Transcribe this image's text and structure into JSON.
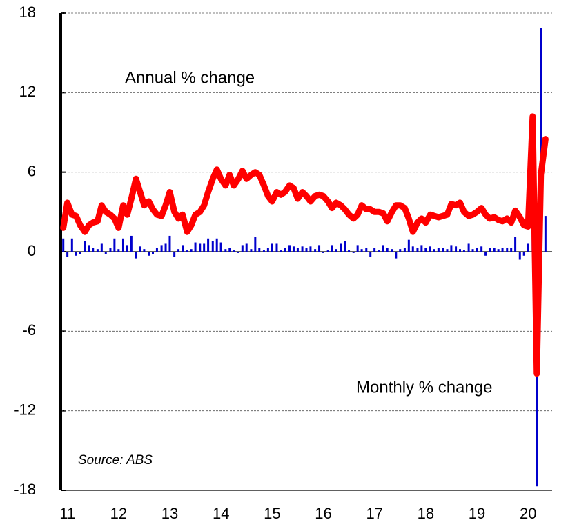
{
  "chart_data": {
    "type": "bar_line",
    "annotations": [
      {
        "text": "Annual % change",
        "color": "#ff0000"
      },
      {
        "text": "Monthly % change",
        "color": "#0000cc"
      }
    ],
    "source": "Source: ABS",
    "x": [
      2011,
      2011.08,
      2011.17,
      2011.25,
      2011.33,
      2011.42,
      2011.5,
      2011.58,
      2011.67,
      2011.75,
      2011.83,
      2011.92,
      2012,
      2012.08,
      2012.17,
      2012.25,
      2012.33,
      2012.42,
      2012.5,
      2012.58,
      2012.67,
      2012.75,
      2012.83,
      2012.92,
      2013,
      2013.08,
      2013.17,
      2013.25,
      2013.33,
      2013.42,
      2013.5,
      2013.58,
      2013.67,
      2013.75,
      2013.83,
      2013.92,
      2014,
      2014.08,
      2014.17,
      2014.25,
      2014.33,
      2014.42,
      2014.5,
      2014.58,
      2014.67,
      2014.75,
      2014.83,
      2014.92,
      2015,
      2015.08,
      2015.17,
      2015.25,
      2015.33,
      2015.42,
      2015.5,
      2015.58,
      2015.67,
      2015.75,
      2015.83,
      2015.92,
      2016,
      2016.08,
      2016.17,
      2016.25,
      2016.33,
      2016.42,
      2016.5,
      2016.58,
      2016.67,
      2016.75,
      2016.83,
      2016.92,
      2017,
      2017.08,
      2017.17,
      2017.25,
      2017.33,
      2017.42,
      2017.5,
      2017.58,
      2017.67,
      2017.75,
      2017.83,
      2017.92,
      2018,
      2018.08,
      2018.17,
      2018.25,
      2018.33,
      2018.42,
      2018.5,
      2018.58,
      2018.67,
      2018.75,
      2018.83,
      2018.92,
      2019,
      2019.08,
      2019.17,
      2019.25,
      2019.33,
      2019.42,
      2019.5,
      2019.58,
      2019.67,
      2019.75,
      2019.83,
      2019.92,
      2020,
      2020.08,
      2020.17,
      2020.25,
      2020.33,
      2020.42
    ],
    "series": [
      {
        "name": "Monthly % change",
        "kind": "bar",
        "color": "#0000cc",
        "values": [
          1.0,
          -0.4,
          1.0,
          -0.3,
          -0.2,
          0.8,
          0.5,
          0.3,
          0.2,
          0.6,
          -0.2,
          0.3,
          1.0,
          0.2,
          1.0,
          0.5,
          1.2,
          -0.5,
          0.4,
          0.2,
          -0.3,
          -0.2,
          0.3,
          0.5,
          0.6,
          1.2,
          -0.4,
          0.2,
          0.5,
          0.1,
          0.2,
          0.7,
          0.6,
          0.6,
          1.0,
          0.8,
          1.0,
          0.7,
          0.2,
          0.3,
          0.1,
          -0.1,
          0.5,
          0.6,
          0.2,
          1.1,
          0.3,
          0.1,
          0.3,
          0.6,
          0.6,
          0.1,
          0.3,
          0.5,
          0.4,
          0.3,
          0.4,
          0.3,
          0.4,
          0.2,
          0.5,
          -0.1,
          0.1,
          0.5,
          0.2,
          0.6,
          0.8,
          0.1,
          -0.1,
          0.5,
          0.2,
          0.3,
          -0.4,
          0.3,
          0.1,
          0.5,
          0.3,
          0.2,
          -0.5,
          0.2,
          0.3,
          0.9,
          0.4,
          0.3,
          0.5,
          0.3,
          0.4,
          0.2,
          0.3,
          0.3,
          0.2,
          0.5,
          0.4,
          0.2,
          0.1,
          0.6,
          0.2,
          0.3,
          0.4,
          -0.3,
          0.3,
          0.3,
          0.2,
          0.3,
          0.3,
          0.3,
          1.1,
          -0.6,
          -0.3,
          0.6,
          8.2,
          -17.7,
          16.9,
          2.7
        ]
      },
      {
        "name": "Annual % change",
        "kind": "line",
        "color": "#ff0000",
        "values": [
          1.8,
          3.7,
          2.8,
          2.7,
          2.0,
          1.5,
          2.0,
          2.2,
          2.3,
          3.5,
          3.0,
          2.8,
          2.5,
          1.8,
          3.5,
          2.8,
          4.0,
          5.5,
          4.5,
          3.5,
          3.8,
          3.2,
          2.8,
          2.7,
          3.5,
          4.5,
          3.0,
          2.5,
          2.8,
          1.5,
          2.0,
          2.8,
          3.0,
          3.5,
          4.5,
          5.5,
          6.2,
          5.5,
          5.0,
          5.8,
          5.0,
          5.5,
          6.1,
          5.5,
          5.8,
          6.0,
          5.8,
          5.0,
          4.2,
          3.8,
          4.5,
          4.3,
          4.5,
          5.0,
          4.8,
          4.0,
          4.5,
          4.2,
          3.8,
          4.2,
          4.3,
          4.2,
          3.8,
          3.3,
          3.7,
          3.5,
          3.2,
          2.8,
          2.5,
          2.8,
          3.5,
          3.2,
          3.2,
          3.0,
          3.0,
          2.9,
          2.3,
          3.0,
          3.5,
          3.5,
          3.3,
          2.5,
          1.5,
          2.2,
          2.5,
          2.2,
          2.8,
          2.7,
          2.6,
          2.7,
          2.8,
          3.6,
          3.5,
          3.7,
          3.0,
          2.7,
          2.8,
          3.0,
          3.3,
          2.8,
          2.5,
          2.6,
          2.4,
          2.3,
          2.5,
          2.2,
          3.1,
          2.6,
          2.0,
          1.9,
          10.2,
          -9.2,
          5.8,
          8.5
        ]
      }
    ],
    "xlim": [
      2010.95,
      2020.55
    ],
    "xticks": [
      {
        "value": 2011,
        "label": "11"
      },
      {
        "value": 2012,
        "label": "12"
      },
      {
        "value": 2013,
        "label": "13"
      },
      {
        "value": 2014,
        "label": "14"
      },
      {
        "value": 2015,
        "label": "15"
      },
      {
        "value": 2016,
        "label": "16"
      },
      {
        "value": 2017,
        "label": "17"
      },
      {
        "value": 2018,
        "label": "18"
      },
      {
        "value": 2019,
        "label": "19"
      },
      {
        "value": 2020,
        "label": "20"
      }
    ],
    "ylim": [
      -18,
      18
    ],
    "yticks": [
      -18,
      -12,
      -6,
      0,
      6,
      12,
      18
    ],
    "grid": true
  }
}
